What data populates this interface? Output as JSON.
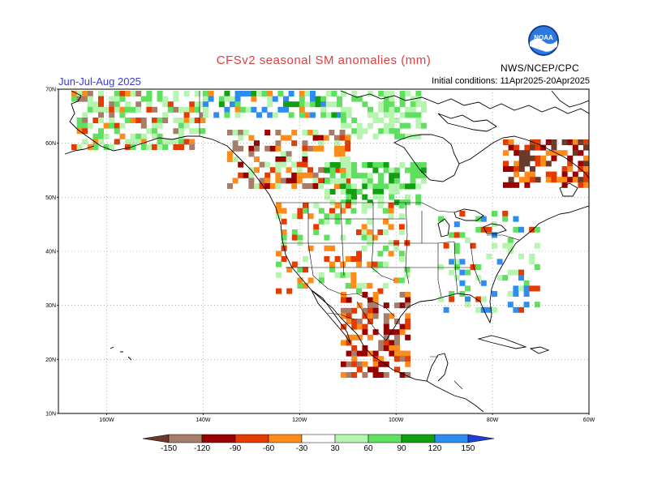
{
  "header": {
    "title": "CFSv2 seasonal SM anomalies (mm)",
    "season": "Jun-Jul-Aug 2025",
    "initial_conditions": "Initial conditions: 11Apr2025-20Apr2025",
    "organization": "NWS/NCEP/CPC",
    "logo_text": "NOAA"
  },
  "map": {
    "lat_labels": [
      "70N",
      "60N",
      "50N",
      "40N",
      "30N",
      "20N",
      "10N"
    ],
    "lon_labels": [
      "160W",
      "140W",
      "120W",
      "100W",
      "80W",
      "60W"
    ],
    "extent": {
      "lon": [
        -170,
        -60
      ],
      "lat": [
        10,
        70
      ]
    }
  },
  "legend": {
    "labels": [
      "-150",
      "-120",
      "-90",
      "-60",
      "-30",
      "30",
      "60",
      "90",
      "120",
      "150"
    ],
    "colors": {
      "below_150": "#6b3a2a",
      "m150_m120": "#a67c6a",
      "m120_m90": "#990000",
      "m90_m60": "#e53a00",
      "m60_m30": "#ff8c1a",
      "m30_p30": "#ffffff",
      "p30_p60": "#b6f5b0",
      "p60_p90": "#5fe05f",
      "p90_p120": "#12a012",
      "p120_p150": "#2f8cf0",
      "above_150": "#1c3fd6"
    }
  }
}
